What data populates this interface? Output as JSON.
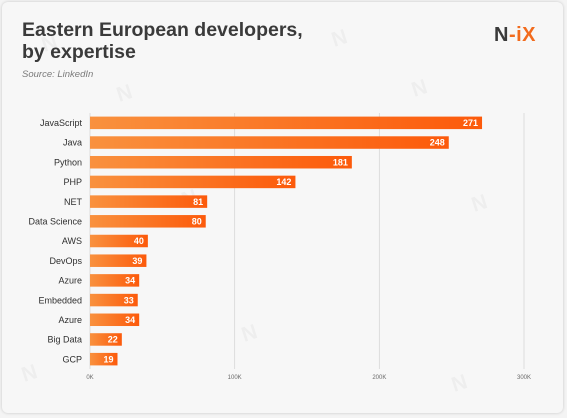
{
  "header": {
    "title": "Eastern European developers,\nby expertise",
    "source": "Source: LinkedIn",
    "logo_left": "N",
    "logo_right": "-iX"
  },
  "colors": {
    "bar_start": "#f9913e",
    "bar_end": "#fc5a0b",
    "accent": "#f26b1d",
    "text": "#3a3a3a"
  },
  "chart_data": {
    "type": "bar",
    "orientation": "horizontal",
    "title": "Eastern European developers, by expertise",
    "categories": [
      "JavaScript",
      "Java",
      "Python",
      "PHP",
      "NET",
      "Data Science",
      "AWS",
      "DevOps",
      "Azure",
      "Embedded",
      "Azure",
      "Big Data",
      "GCP"
    ],
    "values": [
      271,
      248,
      181,
      142,
      81,
      80,
      40,
      39,
      34,
      33,
      34,
      22,
      19
    ],
    "value_labels": [
      "271",
      "248",
      "181",
      "142",
      "81",
      "80",
      "40",
      "39",
      "34",
      "33",
      "34",
      "22",
      "19"
    ],
    "xlim": [
      0,
      300
    ],
    "x_ticks": [
      0,
      100,
      200,
      300
    ],
    "x_tick_labels": [
      "0K",
      "100K",
      "200K",
      "300K"
    ],
    "grid": true,
    "legend": "none"
  }
}
